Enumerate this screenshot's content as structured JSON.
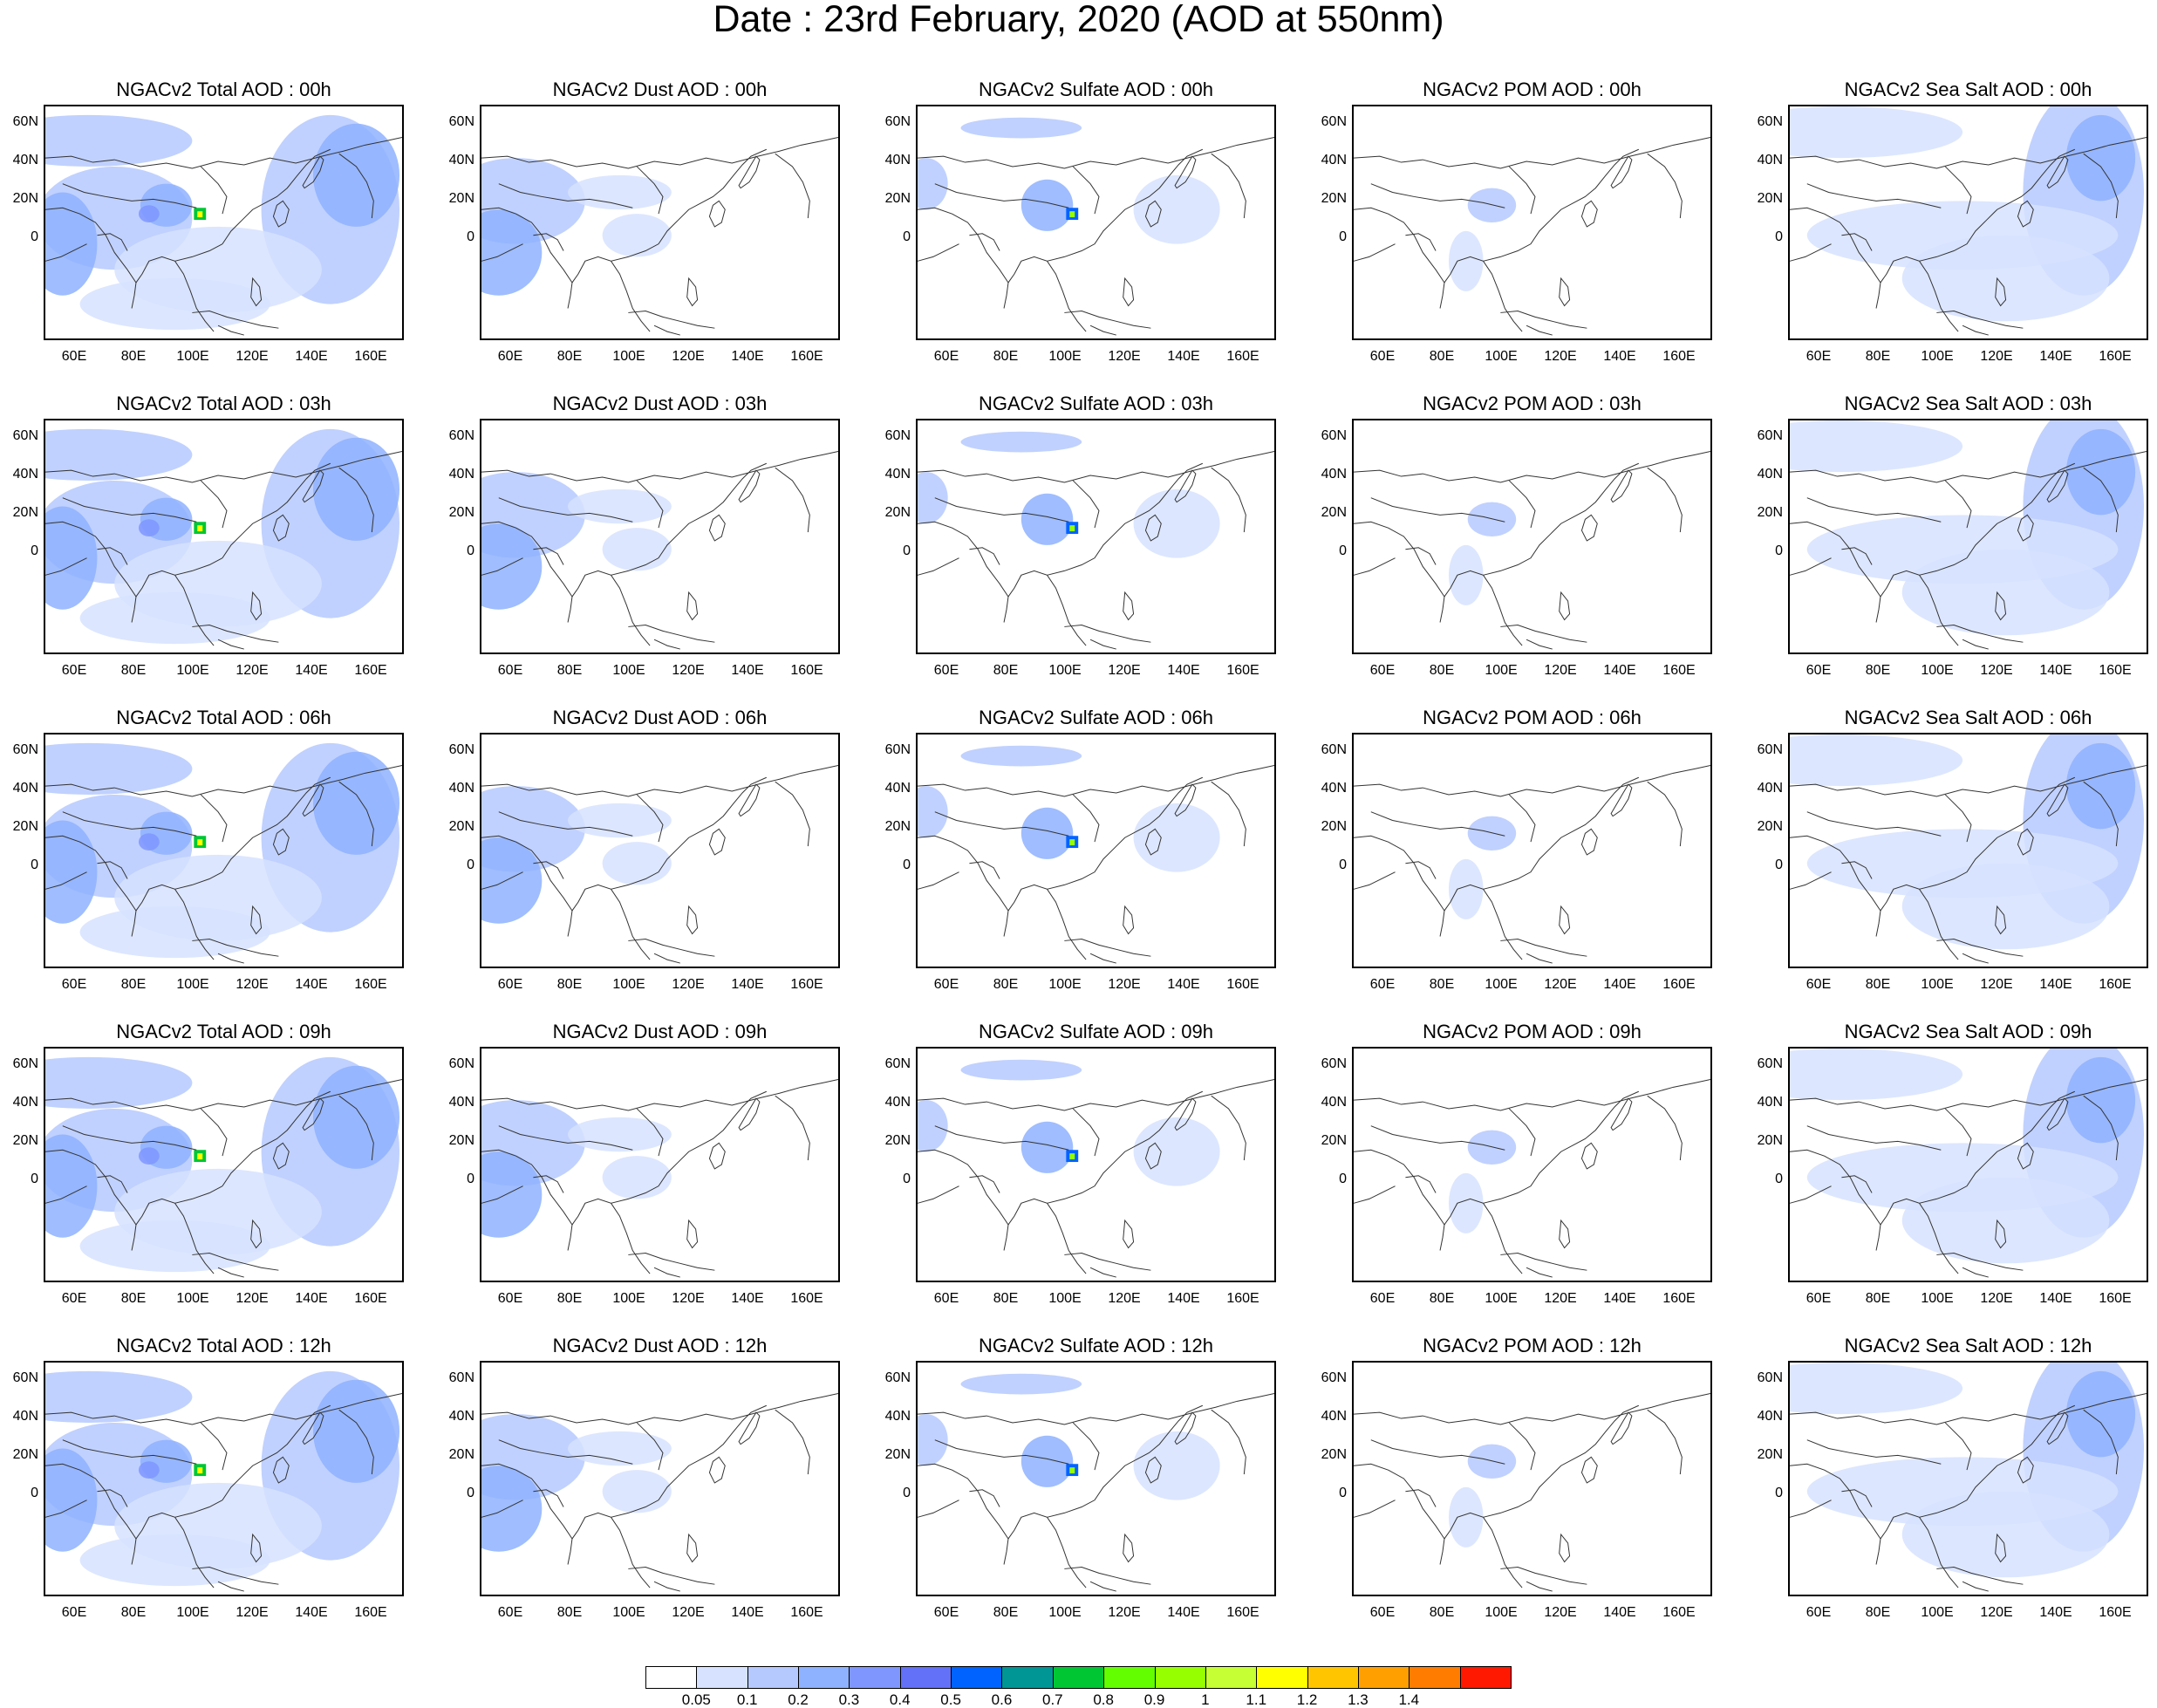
{
  "title": "Date : 23rd February, 2020 (AOD at 550nm)",
  "columns": [
    "Total",
    "Dust",
    "Sulfate",
    "POM",
    "Sea Salt"
  ],
  "panels": [
    [
      "NGACv2 Total AOD : 00h",
      "NGACv2 Dust AOD : 00h",
      "NGACv2 Sulfate AOD : 00h",
      "NGACv2 POM AOD : 00h",
      "NGACv2 Sea Salt AOD : 00h"
    ],
    [
      "NGACv2 Total AOD : 03h",
      "NGACv2 Dust AOD : 03h",
      "NGACv2 Sulfate AOD : 03h",
      "NGACv2 POM AOD : 03h",
      "NGACv2 Sea Salt AOD : 03h"
    ],
    [
      "NGACv2 Total AOD : 06h",
      "NGACv2 Dust AOD : 06h",
      "NGACv2 Sulfate AOD : 06h",
      "NGACv2 POM AOD : 06h",
      "NGACv2 Sea Salt AOD : 06h"
    ],
    [
      "NGACv2 Total AOD : 09h",
      "NGACv2 Dust AOD : 09h",
      "NGACv2 Sulfate AOD : 09h",
      "NGACv2 POM AOD : 09h",
      "NGACv2 Sea Salt  AOD : 09h"
    ],
    [
      "NGACv2 Total AOD  : 12h",
      "NGACv2 Dust AOD : 12h",
      "NGACv2 Sulfate AOD : 12h",
      "NGACv2 POM  AOD : 12h",
      "NGACv2 Sea Salt  AOD : 12h"
    ]
  ],
  "lat_labels": [
    "60N",
    "40N",
    "20N",
    "0"
  ],
  "lon_labels": [
    "60E",
    "80E",
    "100E",
    "120E",
    "140E",
    "160E"
  ],
  "colorbar": {
    "labels": [
      "0.05",
      "0.1",
      "0.2",
      "0.3",
      "0.4",
      "0.5",
      "0.6",
      "0.7",
      "0.8",
      "0.9",
      "1",
      "1.1",
      "1.2",
      "1.3",
      "1.4"
    ],
    "colors": [
      "#ffffff",
      "#d6e2ff",
      "#b5c9ff",
      "#8eb2ff",
      "#7f96ff",
      "#6370f8",
      "#0063ff",
      "#009696",
      "#00c633",
      "#63ff00",
      "#96ff00",
      "#c6ff33",
      "#ffff00",
      "#ffc600",
      "#ffa000",
      "#ff7c00",
      "#ff1900"
    ]
  }
}
